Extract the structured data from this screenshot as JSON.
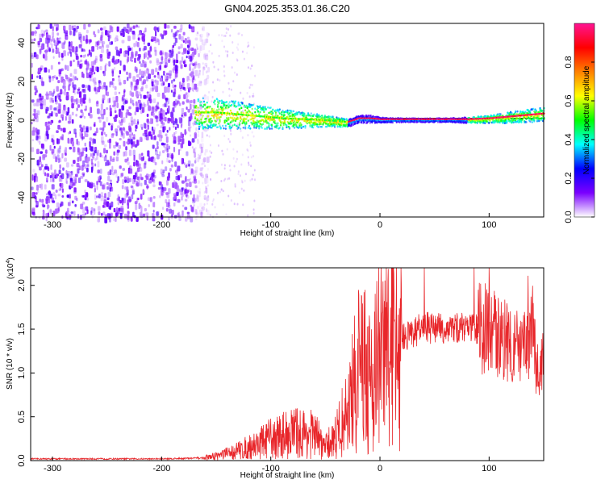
{
  "title": "GN04.2025.353.01.36.C20",
  "colors": {
    "snr_line": "#e8262a",
    "ridge": "#ff2a44",
    "noise": "#6a10e8"
  },
  "chart_data": [
    {
      "type": "heatmap",
      "xlabel": "Height of straight line (km)",
      "ylabel": "Frequency (Hz)",
      "xlim": [
        -320,
        150
      ],
      "ylim": [
        -50,
        50
      ],
      "xticks": [
        -300,
        -200,
        -100,
        0,
        100
      ],
      "yticks": [
        -40,
        -20,
        0,
        20,
        40
      ],
      "colorbar": {
        "label": "Normalized spectral amplitude",
        "range": [
          0,
          1
        ],
        "ticks": [
          "0.0",
          "0.2",
          "0.4",
          "0.6",
          "0.8"
        ],
        "tick_values": [
          0,
          0.2,
          0.4,
          0.6,
          0.8
        ],
        "colormap": [
          "#ffffff",
          "#7a00ff",
          "#0000ff",
          "#00ffff",
          "#00ff00",
          "#ffff00",
          "#ff8000",
          "#ff0000",
          "#ff1493"
        ]
      },
      "ridge": {
        "x": [
          -170,
          -150,
          -130,
          -110,
          -90,
          -70,
          -50,
          -30,
          -20,
          -10,
          0,
          20,
          40,
          60,
          80,
          100,
          120,
          140,
          150
        ],
        "y": [
          4,
          4,
          3,
          2,
          1,
          0.5,
          0,
          -1,
          1,
          1,
          0.5,
          0.5,
          0.5,
          0.5,
          0.5,
          1,
          2,
          3,
          3.5
        ],
        "bandwidth": [
          8,
          8,
          7,
          6,
          5,
          4,
          3,
          2,
          2,
          2,
          1.5,
          1,
          1,
          1,
          1.5,
          2,
          3,
          3.5,
          3.5
        ]
      }
    },
    {
      "type": "line",
      "xlabel": "Height of straight line (km)",
      "ylabel": "SNR (10 * v/v)",
      "yscale_label": "(x10",
      "yscale_exp": "4",
      "xlim": [
        -320,
        150
      ],
      "ylim": [
        0,
        2.2
      ],
      "xticks": [
        -300,
        -200,
        -100,
        0,
        100
      ],
      "yticks": [
        "0.0",
        "0.5",
        "1.0",
        "1.5",
        "2.0"
      ],
      "ytick_values": [
        0,
        0.5,
        1.0,
        1.5,
        2.0
      ],
      "series": [
        {
          "x": [
            -320,
            -250,
            -200,
            -160,
            -140,
            -120,
            -100,
            -80,
            -60,
            -50,
            -40,
            -30,
            -20,
            -15,
            -10,
            -5,
            0,
            10,
            20,
            40,
            60,
            80,
            100,
            110,
            120,
            130,
            140,
            145,
            150
          ],
          "y": [
            0.02,
            0.02,
            0.02,
            0.03,
            0.08,
            0.15,
            0.25,
            0.32,
            0.3,
            0.15,
            0.3,
            0.55,
            1.0,
            1.25,
            0.9,
            1.1,
            1.2,
            1.3,
            1.4,
            1.52,
            1.5,
            1.52,
            1.5,
            1.4,
            1.38,
            1.2,
            1.5,
            0.8,
            1.2
          ]
        }
      ]
    }
  ]
}
